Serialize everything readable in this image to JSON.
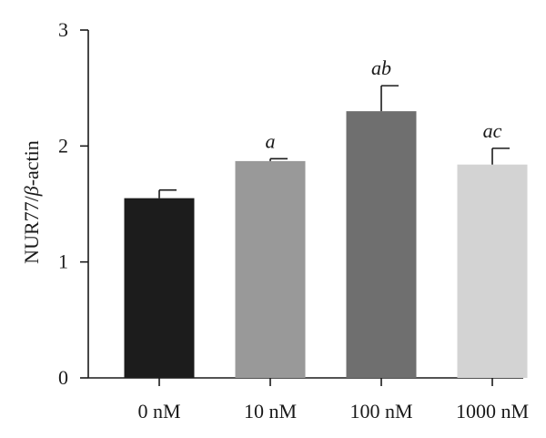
{
  "chart_data": {
    "type": "bar",
    "categories": [
      "0 nM",
      "10 nM",
      "100 nM",
      "1000 nM"
    ],
    "values": [
      1.55,
      1.87,
      2.3,
      1.84
    ],
    "errors": [
      0.07,
      0.02,
      0.22,
      0.14
    ],
    "annotations": [
      "",
      "a",
      "ab",
      "ac"
    ],
    "colors": [
      "#1c1c1c",
      "#999999",
      "#6f6f6f",
      "#d3d3d3"
    ],
    "ylabel_prefix": "NUR77/",
    "ylabel_italic": "β",
    "ylabel_suffix": "-actin",
    "ylim": [
      0,
      3
    ],
    "yticks": [
      "0",
      "1",
      "2",
      "3"
    ],
    "grid": false
  }
}
